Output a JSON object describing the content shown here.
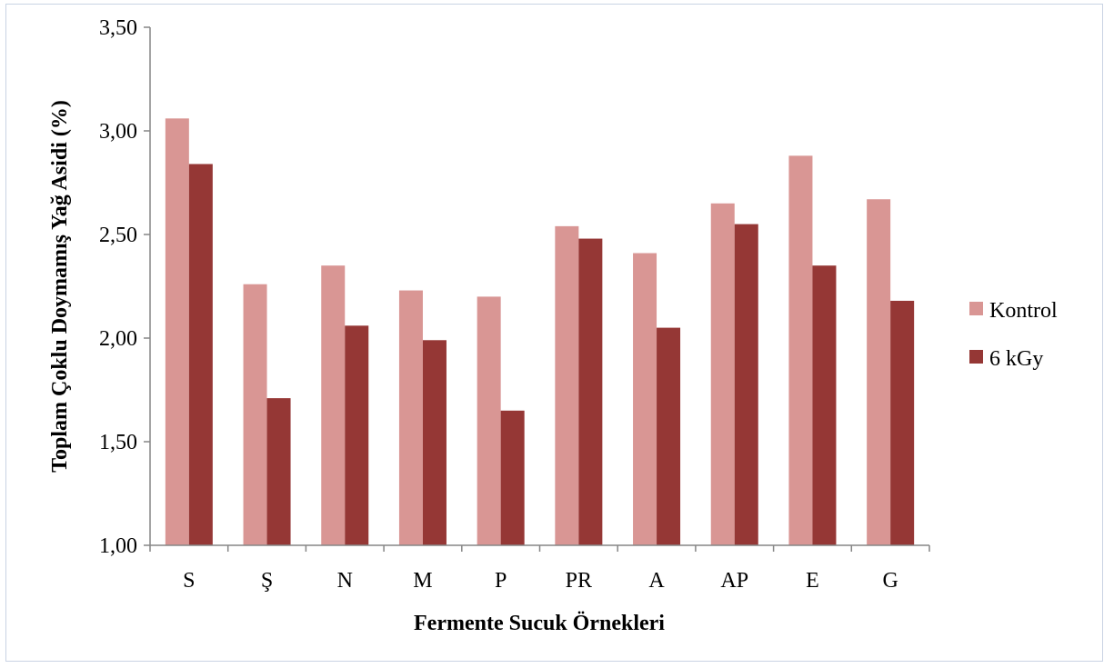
{
  "chart_data": {
    "type": "bar",
    "categories": [
      "S",
      "Ş",
      "N",
      "M",
      "P",
      "PR",
      "A",
      "AP",
      "E",
      "G"
    ],
    "series": [
      {
        "name": "Kontrol",
        "color": "#d99694",
        "values": [
          3.06,
          2.26,
          2.35,
          2.23,
          2.2,
          2.54,
          2.41,
          2.65,
          2.88,
          2.67
        ]
      },
      {
        "name": "6 kGy",
        "color": "#953735",
        "values": [
          2.84,
          1.71,
          2.06,
          1.99,
          1.65,
          2.48,
          2.05,
          2.55,
          2.35,
          2.18
        ]
      }
    ],
    "title": "",
    "xlabel": "Fermente Sucuk Örnekleri",
    "ylabel": "Toplam Çoklu Doymamış Yağ Asidi (%)",
    "ylim": [
      1.0,
      3.5
    ],
    "yticks": [
      "1,00",
      "1,50",
      "2,00",
      "2,50",
      "3,00",
      "3,50"
    ],
    "ytick_values": [
      1.0,
      1.5,
      2.0,
      2.5,
      3.0,
      3.5
    ],
    "grid": false,
    "legend_position": "right"
  }
}
